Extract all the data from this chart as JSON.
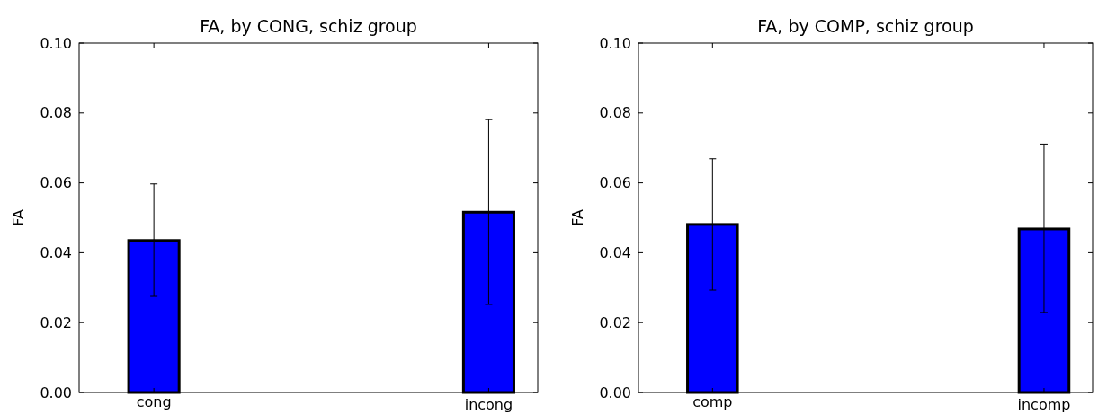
{
  "chart_data": [
    {
      "type": "bar",
      "title": "FA, by CONG, schiz group",
      "ylabel": "FA",
      "categories": [
        "cong",
        "incong"
      ],
      "values": [
        0.0435,
        0.0516
      ],
      "errors": [
        [
          0.0275,
          0.0597
        ],
        [
          0.0252,
          0.0781
        ]
      ],
      "color": "#0000ff",
      "ylim": [
        0,
        0.1
      ],
      "yticks": [
        {
          "value": 0,
          "label": "0.00"
        },
        {
          "value": 0.02,
          "label": "0.02"
        },
        {
          "value": 0.04,
          "label": "0.04"
        },
        {
          "value": 0.06,
          "label": "0.06"
        },
        {
          "value": 0.08,
          "label": "0.08"
        },
        {
          "value": 0.1,
          "label": "0.10"
        }
      ],
      "grid": false
    },
    {
      "type": "bar",
      "title": "FA, by COMP, schiz group",
      "ylabel": "FA",
      "categories": [
        "comp",
        "incomp"
      ],
      "values": [
        0.0481,
        0.0468
      ],
      "errors": [
        [
          0.0293,
          0.0669
        ],
        [
          0.0229,
          0.0711
        ]
      ],
      "color": "#0000ff",
      "ylim": [
        0,
        0.1
      ],
      "yticks": [
        {
          "value": 0,
          "label": "0.00"
        },
        {
          "value": 0.02,
          "label": "0.02"
        },
        {
          "value": 0.04,
          "label": "0.04"
        },
        {
          "value": 0.06,
          "label": "0.06"
        },
        {
          "value": 0.08,
          "label": "0.08"
        },
        {
          "value": 0.1,
          "label": "0.10"
        }
      ],
      "grid": false
    }
  ]
}
